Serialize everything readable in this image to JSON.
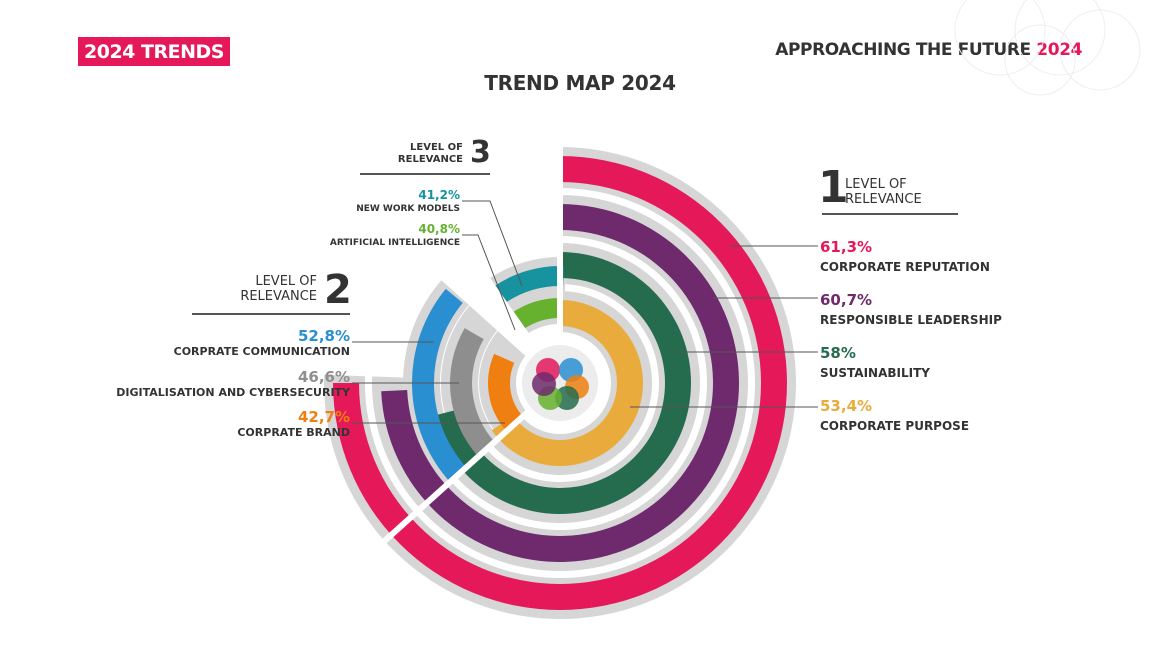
{
  "header": {
    "badge": "2024 TRENDS",
    "tagline_main": "APPROACHING THE FUTURE",
    "tagline_year": "2024"
  },
  "chart_data": {
    "type": "radial-bar",
    "title": "TREND MAP 2024",
    "colors": {
      "track": "#d6d6d6",
      "core": "#ececec"
    },
    "groups": [
      {
        "level": "1",
        "caption": "LEVEL OF RELEVANCE",
        "items": [
          {
            "name": "CORPORATE REPUTATION",
            "value_label": "61,3%",
            "value": 61.3,
            "color": "#e5195a"
          },
          {
            "name": "RESPONSIBLE LEADERSHIP",
            "value_label": "60,7%",
            "value": 60.7,
            "color": "#6f2a6e"
          },
          {
            "name": "SUSTAINABILITY",
            "value_label": "58%",
            "value": 58,
            "color": "#256c4e"
          },
          {
            "name": "CORPORATE PURPOSE",
            "value_label": "53,4%",
            "value": 53.4,
            "color": "#e9ac3c"
          }
        ]
      },
      {
        "level": "2",
        "caption": "LEVEL OF RELEVANCE",
        "items": [
          {
            "name": "CORPRATE COMMUNICATION",
            "value_label": "52,8%",
            "value": 52.8,
            "color": "#2a8fd1"
          },
          {
            "name": "DIGITALISATION AND CYBERSECURITY",
            "value_label": "46,6%",
            "value": 46.6,
            "color": "#8e8e8e"
          },
          {
            "name": "CORPRATE BRAND",
            "value_label": "42,7%",
            "value": 42.7,
            "color": "#ee7f10"
          }
        ]
      },
      {
        "level": "3",
        "caption": "LEVEL OF RELEVANCE",
        "items": [
          {
            "name": "NEW WORK MODELS",
            "value_label": "41,2%",
            "value": 41.2,
            "color": "#16939e"
          },
          {
            "name": "ARTIFICIAL INTELLIGENCE",
            "value_label": "40,8%",
            "value": 40.8,
            "color": "#66b22f"
          }
        ]
      }
    ]
  }
}
